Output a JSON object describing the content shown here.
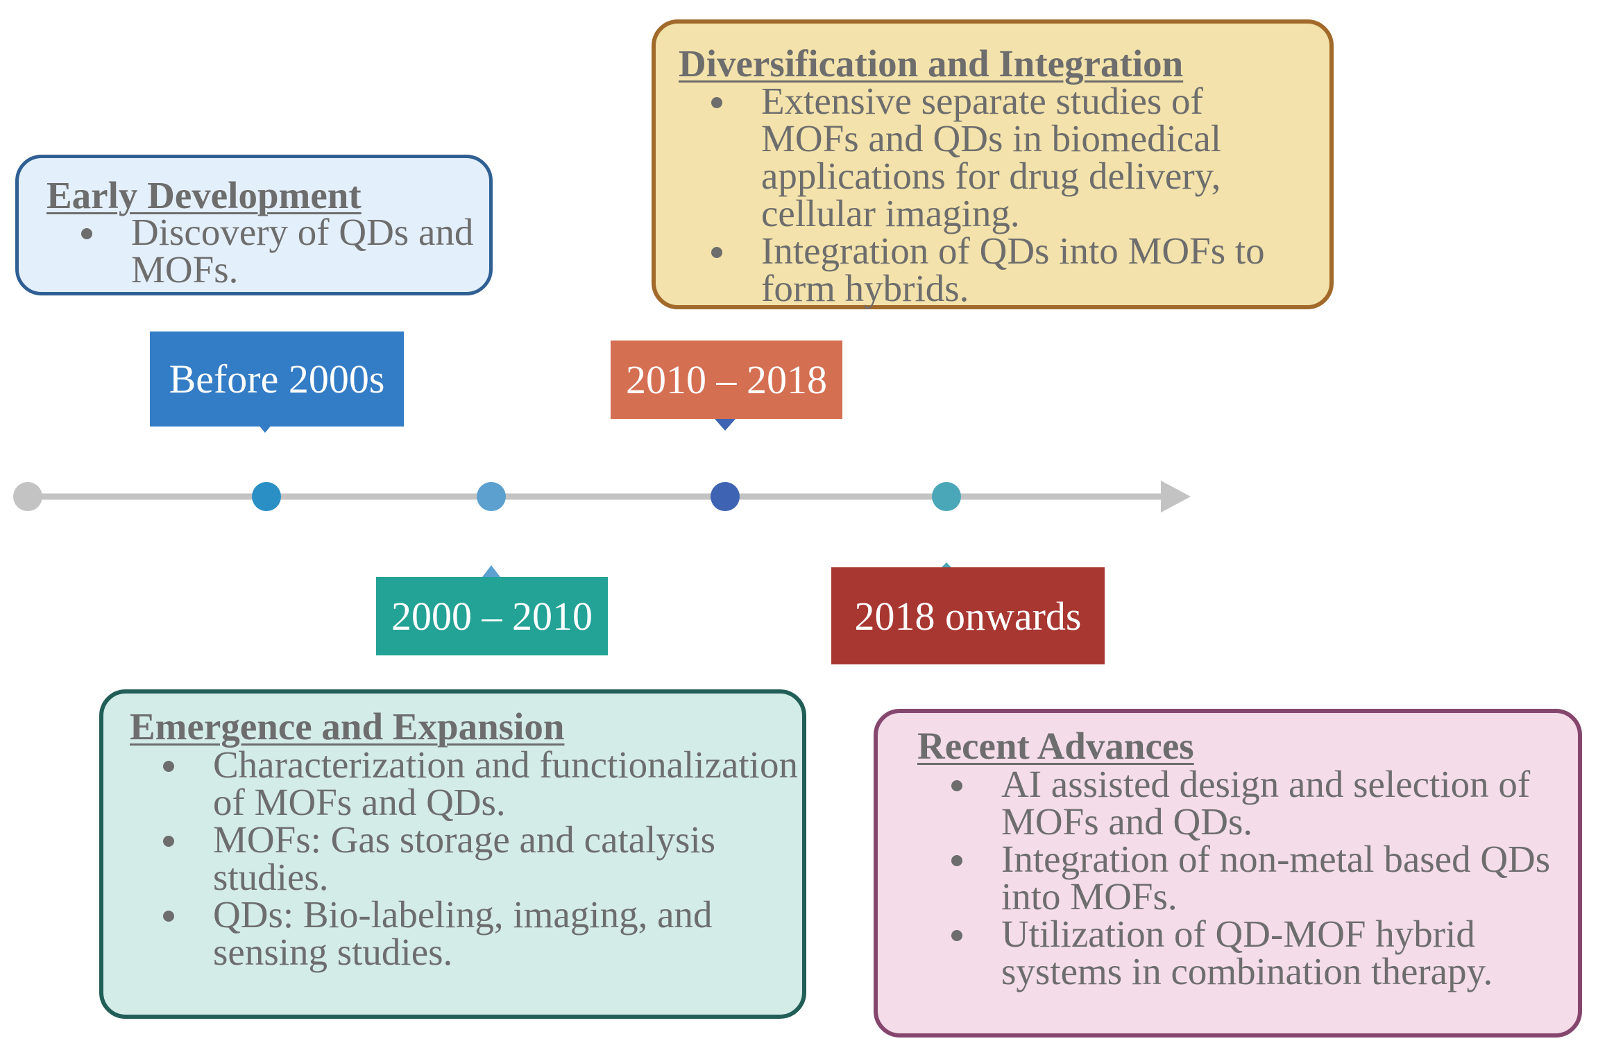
{
  "colors": {
    "axis": "#c3c3c3",
    "text": "#6d6d6d",
    "early_fill": "#e3effa",
    "early_border": "#2f5f93",
    "diversification_fill": "#f3e2ab",
    "diversification_border": "#a26a2a",
    "emergence_fill": "#d3ece8",
    "emergence_border": "#215e57",
    "recent_fill": "#f4dce8",
    "recent_border": "#85466e",
    "label_before_2000s": "#337cc6",
    "label_2000_2010": "#23a296",
    "label_2010_2018": "#d56f52",
    "label_2018_onwards": "#a83731"
  },
  "labels": {
    "before_2000s": "Before 2000s",
    "y2000_2010": "2000 – 2010",
    "y2010_2018": "2010 – 2018",
    "y2018_onwards": "2018 onwards"
  },
  "boxes": {
    "early": {
      "title": "Early Development",
      "bullets": [
        "Discovery of QDs and MOFs."
      ]
    },
    "diversification": {
      "title": "Diversification and Integration",
      "bullets": [
        "Extensive separate studies of MOFs and QDs in biomedical applications for drug delivery, cellular imaging.",
        "Integration of QDs into MOFs to form hybrids."
      ]
    },
    "emergence": {
      "title": "Emergence and Expansion",
      "bullets": [
        "Characterization and functionalization of MOFs and QDs.",
        "MOFs: Gas storage and catalysis studies.",
        "QDs: Bio-labeling, imaging, and sensing studies."
      ]
    },
    "recent": {
      "title": "Recent Advances",
      "bullets": [
        "AI assisted design and selection of MOFs and QDs.",
        "Integration of non-metal based QDs into MOFs.",
        "Utilization of QD-MOF hybrid systems in combination therapy."
      ]
    }
  },
  "timeline_points": [
    {
      "name": "start",
      "color": "#c3c3c3"
    },
    {
      "name": "before-2000s",
      "color": "#2a8fc4"
    },
    {
      "name": "2000-2010",
      "color": "#5ba0cf"
    },
    {
      "name": "2010-2018",
      "color": "#3d63b2"
    },
    {
      "name": "2018-onwards",
      "color": "#4aa7b7"
    }
  ]
}
